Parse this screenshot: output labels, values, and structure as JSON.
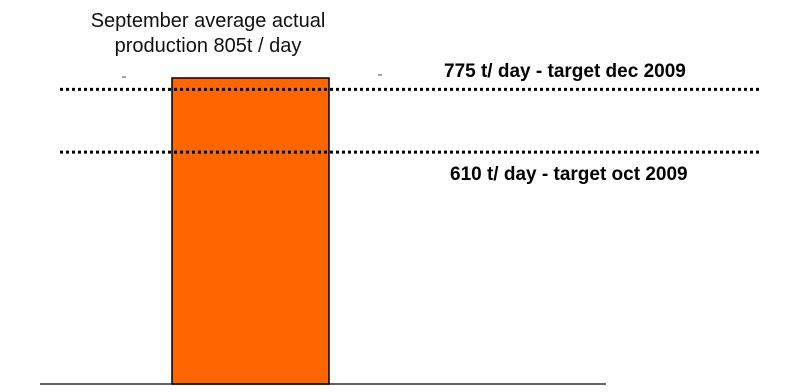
{
  "chart_data": {
    "type": "bar",
    "categories": [
      "September"
    ],
    "values": [
      805
    ],
    "bar_color": "#ff6600",
    "bar_label": [
      "September average actual",
      "production 805t / day"
    ],
    "reference_lines": [
      {
        "value": 775,
        "label": "775 t/ day - target dec 2009"
      },
      {
        "value": 610,
        "label": "610 t/ day - target oct 2009"
      }
    ],
    "xlabel": "",
    "ylabel": "",
    "ylim": [
      0,
      805
    ],
    "grid": false,
    "legend": "none"
  }
}
